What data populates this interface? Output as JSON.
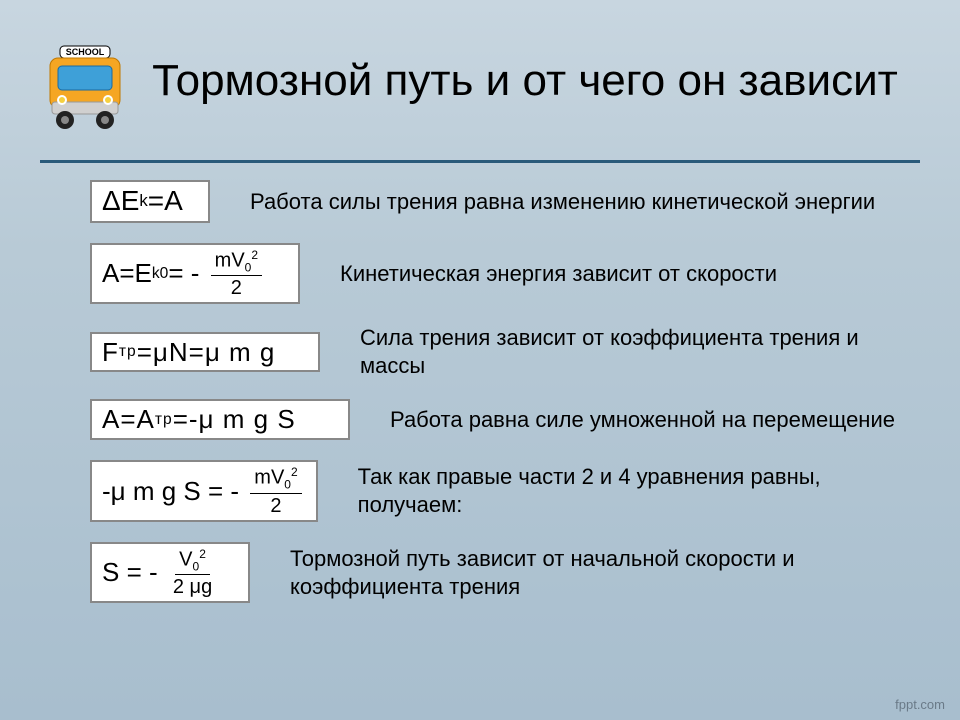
{
  "title": "Тормозной путь и от чего он зависит",
  "rows": [
    {
      "formula_html": "ΔE<sub>k</sub>=A",
      "explain": "Работа силы трения равна изменению кинетической энергии"
    },
    {
      "formula_html": "A=E<sub>k0</sub>= -&nbsp;<span class='frac'><span class='num'>mV<sub>0</sub><sup>2</sup></span><span class='den'>2</span></span>",
      "explain": "Кинетическая энергия зависит от скорости"
    },
    {
      "formula_html": "F<sub>тр</sub>=μN=μ m g",
      "explain": "Сила трения зависит от коэффициента трения и массы"
    },
    {
      "formula_html": "A=A<sub>тр</sub>=-μ m g S",
      "explain": "Работа равна силе умноженной на перемещение"
    },
    {
      "formula_html": "-μ m g S = -&nbsp;<span class='frac'><span class='num'>mV<sub>0</sub><sup>2</sup></span><span class='den'>2</span></span>",
      "explain": "Так как правые части 2 и 4 уравнения равны, получаем:"
    },
    {
      "formula_html": "S = -&nbsp;<span class='frac'><span class='num'>V<sub>0</sub><sup>2</sup></span><span class='den'>2 μg</span></span>",
      "explain": "Тормозной путь зависит от начальной скорости и коэффициента трения"
    }
  ],
  "footer": "fppt.com",
  "bus": {
    "body_color": "#f5a623",
    "roof_color": "#f5a623",
    "window_color": "#3ea0d8",
    "wheel_color": "#222222",
    "sign_text": "SCHOOL",
    "sign_bg": "#ffffff",
    "sign_text_color": "#000000",
    "bumper_color": "#d0d0d0"
  },
  "style": {
    "bg_gradient_top": "#c8d6e0",
    "bg_gradient_bottom": "#a8bece",
    "divider_color": "#2a5a7a",
    "title_fontsize": 44,
    "formula_fontsize": 26,
    "explain_fontsize": 22,
    "formula_border": "#888888",
    "formula_bg": "#ffffff"
  }
}
